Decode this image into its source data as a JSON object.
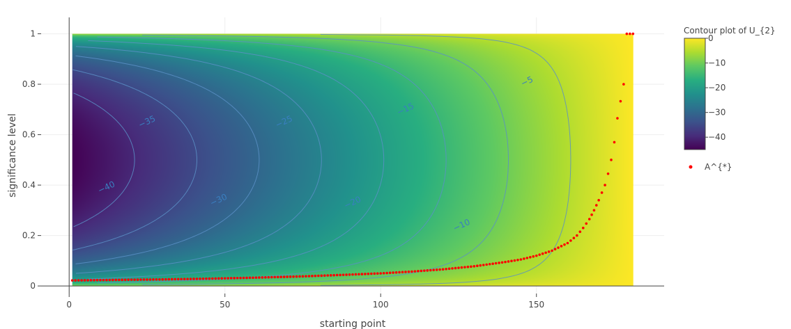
{
  "chart_data": {
    "type": "heatmap",
    "subtype": "contour",
    "title": "",
    "xlabel": "starting point",
    "ylabel": "significance level",
    "xlim": [
      -9,
      191
    ],
    "ylim": [
      -0.03,
      1.065
    ],
    "x_ticks": [
      0,
      50,
      100,
      150
    ],
    "y_ticks": [
      0,
      0.2,
      0.4,
      0.6,
      0.8,
      1
    ],
    "x_tick_labels": [
      "0",
      "50",
      "100",
      "150"
    ],
    "y_tick_labels": [
      "0",
      "0.2",
      "0.4",
      "0.6",
      "0.8",
      "1"
    ],
    "grid": true,
    "contour": {
      "name": "Contour plot of U_{2}",
      "x_range": [
        1,
        181
      ],
      "y_range": [
        0,
        1
      ],
      "z_range": [
        -45,
        0
      ],
      "z_min_point": {
        "x": 1,
        "y": 0.5,
        "z": -45
      },
      "levels": [
        -45,
        -40,
        -35,
        -30,
        -25,
        -20,
        -15,
        -10,
        -5
      ],
      "labels": [
        {
          "text": "−40",
          "x": 12,
          "y": 0.39
        },
        {
          "text": "−35",
          "x": 25,
          "y": 0.65
        },
        {
          "text": "−30",
          "x": 48,
          "y": 0.34
        },
        {
          "text": "−25",
          "x": 69,
          "y": 0.65
        },
        {
          "text": "−20",
          "x": 91,
          "y": 0.33
        },
        {
          "text": "−15",
          "x": 108,
          "y": 0.7
        },
        {
          "text": "−10",
          "x": 126,
          "y": 0.24
        },
        {
          "text": "−5",
          "x": 147,
          "y": 0.81
        }
      ],
      "colorscale": "viridis",
      "colorbar_title": "Contour plot of U_{2}",
      "colorbar_ticks": [
        0,
        -10,
        -20,
        -30,
        -40
      ],
      "colorbar_tick_labels": [
        "0",
        "−10",
        "−20",
        "−30",
        "−40"
      ]
    },
    "series": [
      {
        "name": "A^{*}",
        "type": "scatter",
        "color": "#ff0000",
        "x": [
          1,
          15,
          30,
          45,
          60,
          75,
          90,
          100,
          110,
          120,
          130,
          140,
          145,
          150,
          155,
          160,
          163,
          165,
          167,
          168.5,
          170,
          171,
          172,
          173,
          174,
          175,
          176,
          178,
          179,
          180,
          181
        ],
        "y": [
          0.022,
          0.024,
          0.026,
          0.029,
          0.033,
          0.038,
          0.045,
          0.05,
          0.057,
          0.066,
          0.078,
          0.095,
          0.105,
          0.12,
          0.14,
          0.17,
          0.2,
          0.23,
          0.265,
          0.3,
          0.34,
          0.37,
          0.4,
          0.445,
          0.5,
          0.57,
          0.665,
          0.8,
          1.0,
          1.0,
          1.0
        ]
      }
    ],
    "legend_placement": "right"
  }
}
